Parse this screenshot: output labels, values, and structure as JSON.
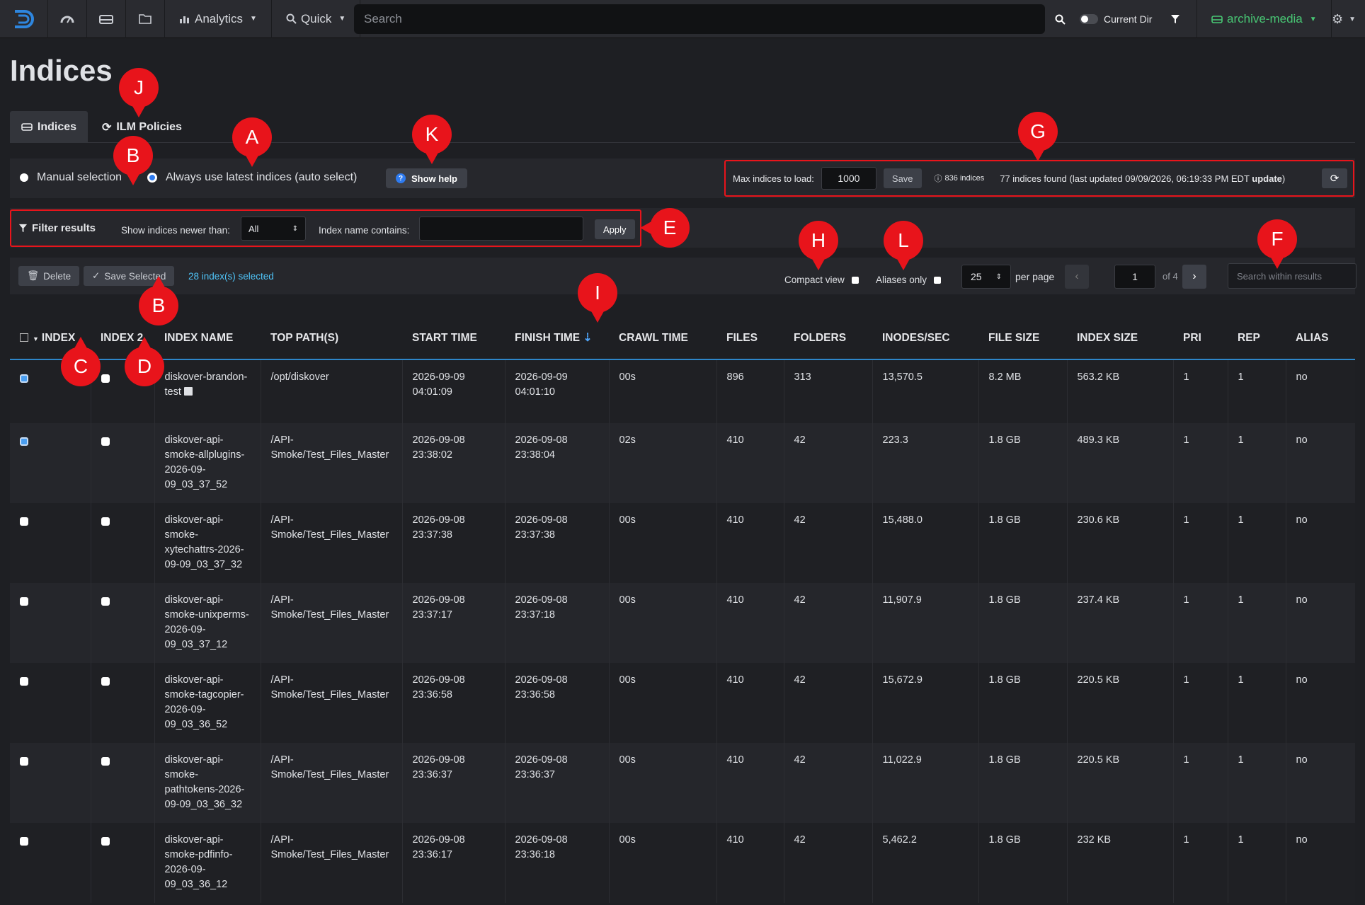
{
  "nav": {
    "analytics_label": "Analytics",
    "quick_label": "Quick",
    "search_placeholder": "Search",
    "current_dir_label": "Current Dir",
    "index_label": "archive-media"
  },
  "page": {
    "title": "Indices"
  },
  "tabs": [
    {
      "label": "Indices"
    },
    {
      "label": "ILM Policies"
    }
  ],
  "selection": {
    "manual_label": "Manual selection",
    "auto_label": "Always use latest indices (auto select)",
    "help_label": "Show help"
  },
  "max_indices": {
    "label": "Max indices to load:",
    "value": "1000",
    "save_label": "Save",
    "count_badge": "836 indices",
    "found_text": "77 indices found (last updated 09/09/2026, 06:19:33 PM EDT",
    "update_link": "update",
    "close_paren": ")"
  },
  "filter": {
    "title": "Filter results",
    "newer_label": "Show indices newer than:",
    "newer_value": "All",
    "name_label": "Index name contains:",
    "apply_label": "Apply"
  },
  "actions": {
    "delete_label": "Delete",
    "save_selected_label": "Save Selected",
    "selected_count": "28 index(s) selected",
    "compact_label": "Compact view",
    "aliases_label": "Aliases only",
    "per_page_value": "25",
    "per_page_label": "per page",
    "page_value": "1",
    "page_of": "of 4",
    "search_placeholder": "Search within results"
  },
  "table": {
    "headers": [
      "INDEX",
      "INDEX 2",
      "INDEX NAME",
      "TOP PATH(S)",
      "START TIME",
      "FINISH TIME",
      "CRAWL TIME",
      "FILES",
      "FOLDERS",
      "INODES/SEC",
      "FILE SIZE",
      "INDEX SIZE",
      "PRI",
      "REP",
      "ALIAS"
    ],
    "rows": [
      {
        "name": "diskover-brandon-test",
        "path": "/opt/diskover",
        "start": "2026-09-09 04:01:09",
        "finish": "2026-09-09 04:01:10",
        "crawl": "00s",
        "files": "896",
        "folders": "313",
        "inodes": "13,570.5",
        "file_size": "8.2 MB",
        "index_size": "563.2 KB",
        "pri": "1",
        "rep": "1",
        "alias": "no"
      },
      {
        "name": "diskover-api-smoke-allplugins-2026-09-09_03_37_52",
        "path": "/API-Smoke/Test_Files_Master",
        "start": "2026-09-08 23:38:02",
        "finish": "2026-09-08 23:38:04",
        "crawl": "02s",
        "files": "410",
        "folders": "42",
        "inodes": "223.3",
        "file_size": "1.8 GB",
        "index_size": "489.3 KB",
        "pri": "1",
        "rep": "1",
        "alias": "no"
      },
      {
        "name": "diskover-api-smoke-xytechattrs-2026-09-09_03_37_32",
        "path": "/API-Smoke/Test_Files_Master",
        "start": "2026-09-08 23:37:38",
        "finish": "2026-09-08 23:37:38",
        "crawl": "00s",
        "files": "410",
        "folders": "42",
        "inodes": "15,488.0",
        "file_size": "1.8 GB",
        "index_size": "230.6 KB",
        "pri": "1",
        "rep": "1",
        "alias": "no"
      },
      {
        "name": "diskover-api-smoke-unixperms-2026-09-09_03_37_12",
        "path": "/API-Smoke/Test_Files_Master",
        "start": "2026-09-08 23:37:17",
        "finish": "2026-09-08 23:37:18",
        "crawl": "00s",
        "files": "410",
        "folders": "42",
        "inodes": "11,907.9",
        "file_size": "1.8 GB",
        "index_size": "237.4 KB",
        "pri": "1",
        "rep": "1",
        "alias": "no"
      },
      {
        "name": "diskover-api-smoke-tagcopier-2026-09-09_03_36_52",
        "path": "/API-Smoke/Test_Files_Master",
        "start": "2026-09-08 23:36:58",
        "finish": "2026-09-08 23:36:58",
        "crawl": "00s",
        "files": "410",
        "folders": "42",
        "inodes": "15,672.9",
        "file_size": "1.8 GB",
        "index_size": "220.5 KB",
        "pri": "1",
        "rep": "1",
        "alias": "no"
      },
      {
        "name": "diskover-api-smoke-pathtokens-2026-09-09_03_36_32",
        "path": "/API-Smoke/Test_Files_Master",
        "start": "2026-09-08 23:36:37",
        "finish": "2026-09-08 23:36:37",
        "crawl": "00s",
        "files": "410",
        "folders": "42",
        "inodes": "11,022.9",
        "file_size": "1.8 GB",
        "index_size": "220.5 KB",
        "pri": "1",
        "rep": "1",
        "alias": "no"
      },
      {
        "name": "diskover-api-smoke-pdfinfo-2026-09-09_03_36_12",
        "path": "/API-Smoke/Test_Files_Master",
        "start": "2026-09-08 23:36:17",
        "finish": "2026-09-08 23:36:18",
        "crawl": "00s",
        "files": "410",
        "folders": "42",
        "inodes": "5,462.2",
        "file_size": "1.8 GB",
        "index_size": "232 KB",
        "pri": "1",
        "rep": "1",
        "alias": "no"
      }
    ]
  },
  "markers": {
    "A": "A",
    "B": "B",
    "C": "C",
    "D": "D",
    "E": "E",
    "F": "F",
    "G": "G",
    "H": "H",
    "I": "I",
    "J": "J",
    "K": "K",
    "L": "L"
  },
  "colors": {
    "accent": "#2e7bf0",
    "annotation": "#e8141b",
    "index_green": "#48c774",
    "link": "#4fc3f7"
  }
}
